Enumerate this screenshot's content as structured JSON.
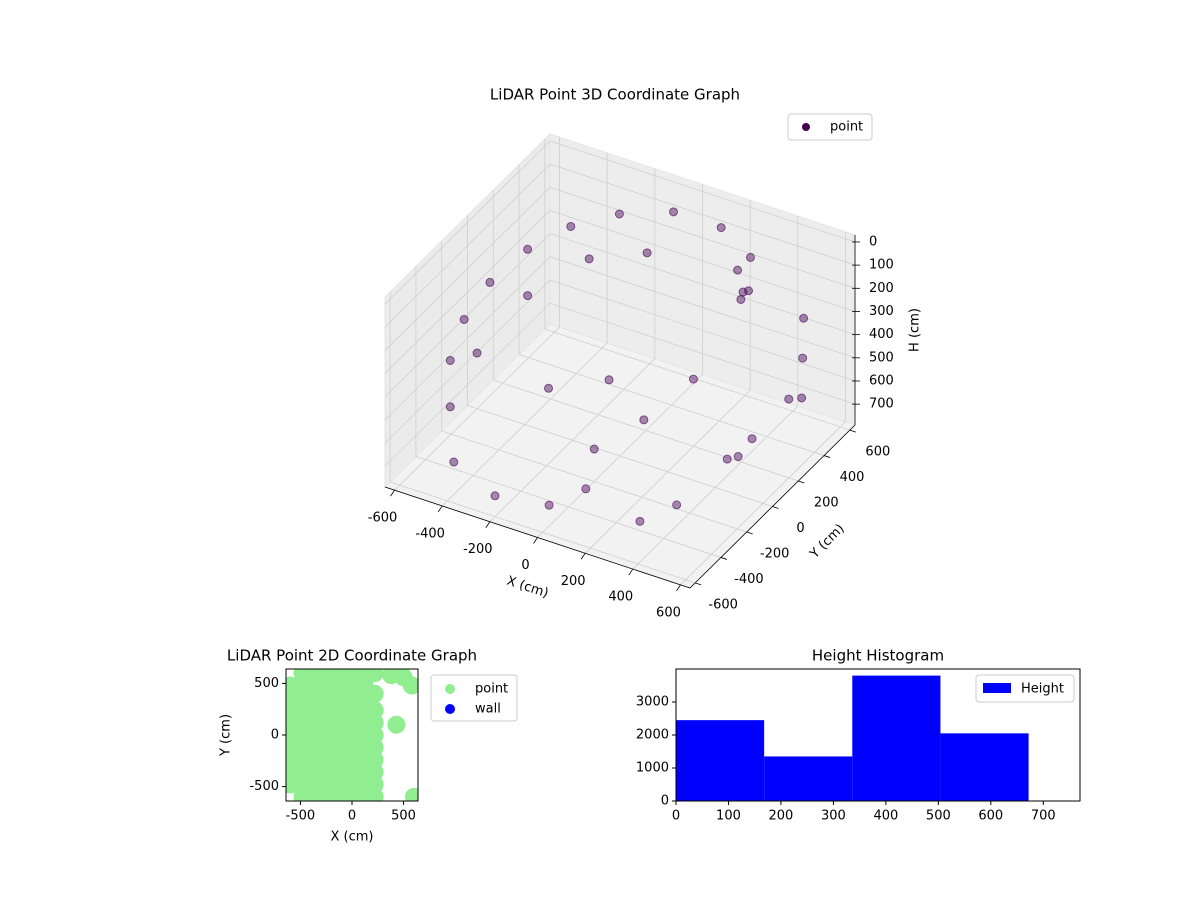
{
  "chart_data": [
    {
      "type": "scatter3d",
      "title": "LiDAR Point 3D Coordinate Graph",
      "x_label": "X (cm)",
      "y_label": "Y (cm)",
      "z_label": "H (cm)",
      "xlim": [
        -640,
        640
      ],
      "ylim": [
        -640,
        640
      ],
      "zlim": [
        -30,
        790
      ],
      "z_inverted": true,
      "xticks": [
        -600,
        -400,
        -200,
        0,
        200,
        400,
        600
      ],
      "yticks": [
        -600,
        -400,
        -200,
        0,
        200,
        400,
        600
      ],
      "zticks": [
        0,
        100,
        200,
        300,
        400,
        500,
        600,
        700
      ],
      "legend": "upper right",
      "grid": true,
      "series": [
        {
          "name": "point",
          "color": "#440154",
          "x": [
            -550,
            -600,
            -600,
            -550,
            -450,
            -300,
            -100,
            100,
            250,
            -550,
            -600,
            -550,
            -400,
            -200,
            -400,
            -200,
            0,
            100,
            -300,
            -100,
            0,
            100,
            200,
            250,
            300,
            350,
            280,
            500,
            550,
            600,
            500,
            450,
            550,
            400,
            300,
            600
          ],
          "y": [
            -300,
            -100,
            100,
            300,
            450,
            550,
            600,
            600,
            550,
            -300,
            0,
            300,
            500,
            580,
            -550,
            -600,
            -550,
            -450,
            0,
            100,
            -200,
            0,
            200,
            450,
            400,
            350,
            420,
            500,
            400,
            300,
            100,
            0,
            -100,
            -300,
            -400,
            200
          ],
          "values": [
            400,
            350,
            300,
            250,
            200,
            150,
            100,
            100,
            150,
            600,
            550,
            450,
            350,
            300,
            650,
            700,
            700,
            650,
            600,
            550,
            650,
            600,
            500,
            150,
            200,
            150,
            250,
            300,
            400,
            500,
            600,
            650,
            550,
            700,
            750,
            450
          ]
        }
      ]
    },
    {
      "type": "scatter",
      "title": "LiDAR Point 2D Coordinate Graph",
      "x_label": "X (cm)",
      "y_label": "Y (cm)",
      "xlim": [
        -640,
        640
      ],
      "ylim": [
        -640,
        640
      ],
      "xticks": [
        -500,
        0,
        500
      ],
      "yticks": [
        -500,
        0,
        500
      ],
      "legend": "outside right",
      "series": [
        {
          "name": "point",
          "color": "#90ee90",
          "x": [
            -600,
            -600,
            -600,
            -600,
            -600,
            -600,
            -600,
            -600,
            -600,
            -480,
            -480,
            -480,
            -480,
            -480,
            -480,
            -480,
            -480,
            -480,
            -480,
            -480,
            -360,
            -360,
            -360,
            -360,
            -360,
            -360,
            -360,
            -360,
            -360,
            -360,
            -360,
            -240,
            -240,
            -240,
            -240,
            -240,
            -240,
            -240,
            -240,
            -240,
            -240,
            -240,
            -120,
            -120,
            -120,
            -120,
            -120,
            -120,
            -120,
            -120,
            -120,
            -120,
            -120,
            0,
            0,
            0,
            0,
            0,
            0,
            0,
            0,
            0,
            0,
            0,
            120,
            120,
            120,
            120,
            120,
            120,
            120,
            120,
            120,
            120,
            120,
            220,
            220,
            220,
            220,
            220,
            220,
            220,
            220,
            220,
            220,
            380,
            500,
            580,
            430,
            600
          ],
          "values": [
            -480,
            -360,
            -240,
            -120,
            0,
            120,
            240,
            360,
            480,
            -600,
            -480,
            -360,
            -240,
            -120,
            0,
            120,
            240,
            360,
            480,
            600,
            -600,
            -480,
            -360,
            -240,
            -120,
            0,
            120,
            240,
            360,
            480,
            600,
            -600,
            -480,
            -360,
            -240,
            -120,
            0,
            120,
            240,
            360,
            480,
            600,
            -600,
            -480,
            -360,
            -240,
            -120,
            0,
            120,
            240,
            360,
            480,
            600,
            -600,
            -480,
            -360,
            -240,
            -120,
            0,
            120,
            240,
            360,
            480,
            600,
            -600,
            -480,
            -360,
            -240,
            -120,
            0,
            120,
            240,
            360,
            480,
            600,
            -600,
            -480,
            -360,
            -240,
            -120,
            0,
            120,
            240,
            400,
            600,
            580,
            560,
            480,
            100,
            -600
          ]
        },
        {
          "name": "wall",
          "color": "#0000ff",
          "x": [],
          "values": []
        }
      ]
    },
    {
      "type": "histogram",
      "title": "Height Histogram",
      "bins": [
        0,
        168,
        336,
        504,
        672
      ],
      "values": [
        2450,
        1350,
        3800,
        2050
      ],
      "xlim": [
        0,
        770
      ],
      "ylim": [
        0,
        4000
      ],
      "xticks": [
        0,
        100,
        200,
        300,
        400,
        500,
        600,
        700
      ],
      "yticks": [
        0,
        1000,
        2000,
        3000
      ],
      "legend": "upper right",
      "series": [
        {
          "name": "Height",
          "color": "#0000ff"
        }
      ]
    }
  ]
}
